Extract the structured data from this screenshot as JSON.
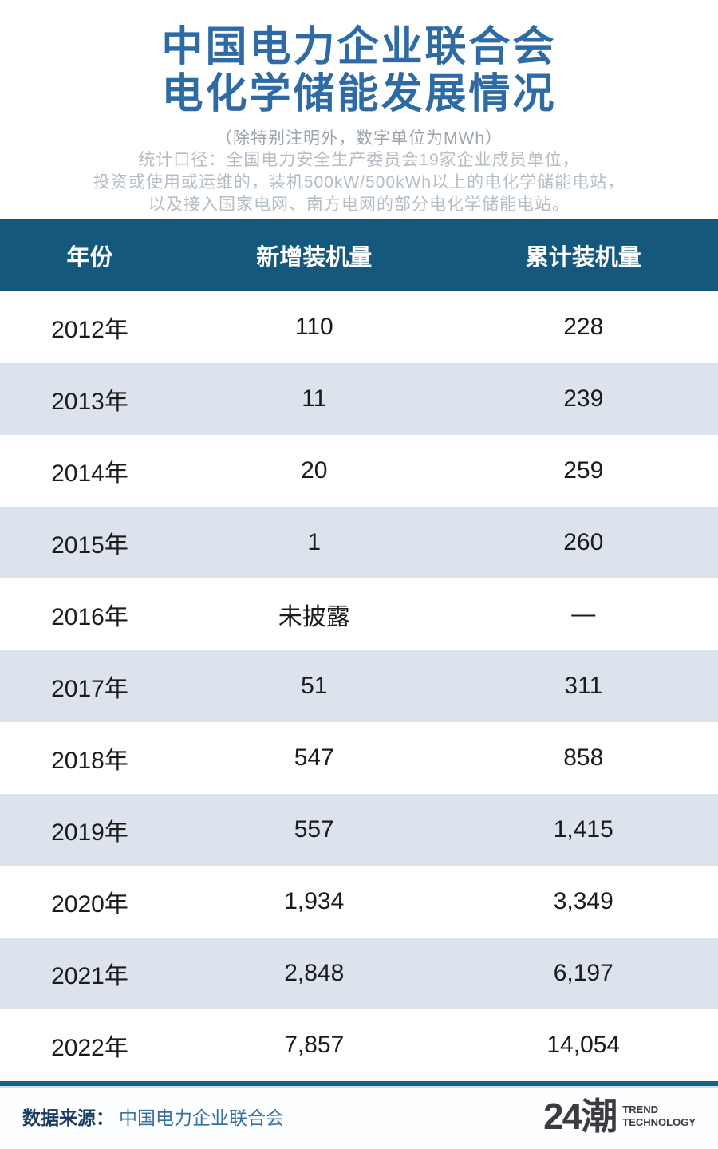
{
  "title": {
    "line1": "中国电力企业联合会",
    "line2": "电化学储能发展情况"
  },
  "subtitle": "（除特别注明外，数字单位为MWh）",
  "notes": [
    "统计口径：全国电力安全生产委员会19家企业成员单位，",
    "投资或使用或运维的，装机500kW/500kWh以上的电化学储能电站，",
    "以及接入国家电网、南方电网的部分电化学储能电站。"
  ],
  "table": {
    "columns": [
      "年份",
      "新增装机量",
      "累计装机量"
    ],
    "rows": [
      [
        "2012年",
        "110",
        "228"
      ],
      [
        "2013年",
        "11",
        "239"
      ],
      [
        "2014年",
        "20",
        "259"
      ],
      [
        "2015年",
        "1",
        "260"
      ],
      [
        "2016年",
        "未披露",
        "—"
      ],
      [
        "2017年",
        "51",
        "311"
      ],
      [
        "2018年",
        "547",
        "858"
      ],
      [
        "2019年",
        "557",
        "1,415"
      ],
      [
        "2020年",
        "1,934",
        "3,349"
      ],
      [
        "2021年",
        "2,848",
        "6,197"
      ],
      [
        "2022年",
        "7,857",
        "14,054"
      ]
    ]
  },
  "chart_data": {
    "type": "table",
    "title": "中国电力企业联合会电化学储能发展情况",
    "unit_note": "（除特别注明外，数字单位为MWh）",
    "columns": [
      "年份",
      "新增装机量",
      "累计装机量"
    ],
    "categories": [
      "2012",
      "2013",
      "2014",
      "2015",
      "2016",
      "2017",
      "2018",
      "2019",
      "2020",
      "2021",
      "2022"
    ],
    "series": [
      {
        "name": "新增装机量",
        "values": [
          110,
          11,
          20,
          1,
          null,
          51,
          547,
          557,
          1934,
          2848,
          7857
        ]
      },
      {
        "name": "累计装机量",
        "values": [
          228,
          239,
          259,
          260,
          null,
          311,
          858,
          1415,
          3349,
          6197,
          14054
        ]
      }
    ],
    "missing_value_labels": {
      "2016_new": "未披露",
      "2016_cumulative": "—"
    }
  },
  "footer": {
    "source_label": "数据来源：",
    "source_value": "中国电力企业联合会",
    "logo_mark": "24潮",
    "logo_sub1": "TREND",
    "logo_sub2": "TECHNOLOGY"
  },
  "colors": {
    "title_blue": "#2E6BA4",
    "table_header_bg": "#15587E",
    "table_header_text": "#FFFFFF",
    "row_alt_bg": "#DCE3EC",
    "row_text": "#1B1B1B",
    "divider_blue": "#1B5E88",
    "divider_light_edge": "#C3E1F1",
    "source_label_color": "#1B3C60",
    "source_value_color": "#3A6FA0",
    "logo_color": "#3B3B43",
    "note_gray": "#B4BCC4",
    "subtitle_gray": "#9CA3AB"
  }
}
